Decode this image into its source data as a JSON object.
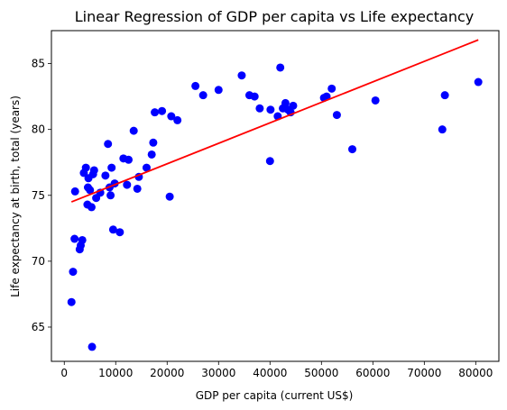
{
  "chart_data": {
    "type": "scatter",
    "title": "Linear Regression of GDP per capita vs Life expectancy",
    "xlabel": "GDP per capita (current US$)",
    "ylabel": "Life expectancy at birth, total (years)",
    "xlim": [
      -2500,
      84500
    ],
    "ylim": [
      62.4,
      87.5
    ],
    "xticks": [
      0,
      10000,
      20000,
      30000,
      40000,
      50000,
      60000,
      70000,
      80000
    ],
    "xtick_labels": [
      "0",
      "10000",
      "20000",
      "30000",
      "40000",
      "50000",
      "60000",
      "70000",
      "80000"
    ],
    "yticks": [
      65,
      70,
      75,
      80,
      85
    ],
    "ytick_labels": [
      "65",
      "70",
      "75",
      "80",
      "85"
    ],
    "grid": false,
    "colors": {
      "points": "#0000ff",
      "regression": "#ff0000"
    },
    "points": [
      [
        1400,
        66.9
      ],
      [
        1700,
        69.2
      ],
      [
        2000,
        71.7
      ],
      [
        2100,
        75.3
      ],
      [
        3000,
        70.9
      ],
      [
        3200,
        71.2
      ],
      [
        3500,
        71.6
      ],
      [
        3800,
        76.7
      ],
      [
        4200,
        77.1
      ],
      [
        4500,
        74.3
      ],
      [
        4600,
        75.6
      ],
      [
        4700,
        76.3
      ],
      [
        5000,
        75.4
      ],
      [
        5300,
        74.1
      ],
      [
        5400,
        63.5
      ],
      [
        5600,
        76.6
      ],
      [
        5800,
        76.9
      ],
      [
        6200,
        74.8
      ],
      [
        7000,
        75.2
      ],
      [
        8000,
        76.5
      ],
      [
        8500,
        78.9
      ],
      [
        8800,
        75.6
      ],
      [
        9000,
        75.0
      ],
      [
        9200,
        77.1
      ],
      [
        9500,
        72.4
      ],
      [
        9800,
        75.9
      ],
      [
        10800,
        72.2
      ],
      [
        11500,
        77.8
      ],
      [
        12200,
        75.8
      ],
      [
        12500,
        77.7
      ],
      [
        13500,
        79.9
      ],
      [
        14200,
        75.5
      ],
      [
        14500,
        76.4
      ],
      [
        16000,
        77.1
      ],
      [
        17000,
        78.1
      ],
      [
        17300,
        79.0
      ],
      [
        17600,
        81.3
      ],
      [
        19000,
        81.4
      ],
      [
        20500,
        74.9
      ],
      [
        20800,
        81.0
      ],
      [
        22000,
        80.7
      ],
      [
        25500,
        83.3
      ],
      [
        27000,
        82.6
      ],
      [
        30000,
        83.0
      ],
      [
        34500,
        84.1
      ],
      [
        36000,
        82.6
      ],
      [
        37000,
        82.5
      ],
      [
        38000,
        81.6
      ],
      [
        40000,
        77.6
      ],
      [
        40100,
        81.5
      ],
      [
        41500,
        81.0
      ],
      [
        42000,
        84.7
      ],
      [
        42500,
        81.6
      ],
      [
        43000,
        82.0
      ],
      [
        43500,
        81.5
      ],
      [
        44000,
        81.3
      ],
      [
        44500,
        81.8
      ],
      [
        50500,
        82.4
      ],
      [
        51000,
        82.5
      ],
      [
        52000,
        83.1
      ],
      [
        53000,
        81.1
      ],
      [
        56000,
        78.5
      ],
      [
        60500,
        82.2
      ],
      [
        73500,
        80.0
      ],
      [
        74000,
        82.6
      ],
      [
        80500,
        83.6
      ]
    ],
    "regression": {
      "x": [
        1400,
        80500
      ],
      "y": [
        74.5,
        86.8
      ]
    }
  }
}
